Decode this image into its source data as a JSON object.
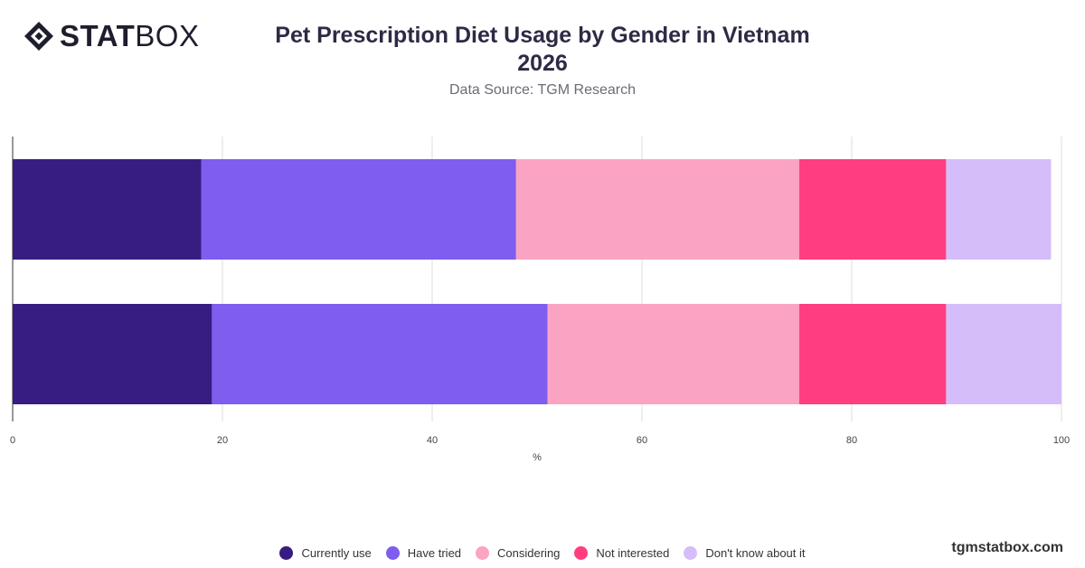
{
  "brand": {
    "logo_bold": "STAT",
    "logo_thin": "BOX",
    "website": "tgmstatbox.com"
  },
  "header": {
    "title_line1": "Pet Prescription Diet Usage by Gender in Vietnam",
    "title_line2": "2026",
    "subtitle": "Data Source: TGM Research"
  },
  "legend": [
    {
      "label": "Currently use",
      "color": "#371d82"
    },
    {
      "label": "Have tried",
      "color": "#7d5eef"
    },
    {
      "label": "Considering",
      "color": "#fba3c3"
    },
    {
      "label": "Not interested",
      "color": "#ff3d80"
    },
    {
      "label": "Don't know about it",
      "color": "#d5bdfa"
    }
  ],
  "chart_data": {
    "type": "bar",
    "orientation": "horizontal",
    "stacked": true,
    "categories": [
      "",
      ""
    ],
    "series": [
      {
        "name": "Currently use",
        "values": [
          18,
          19
        ],
        "color": "#371d82"
      },
      {
        "name": "Have tried",
        "values": [
          30,
          32
        ],
        "color": "#7d5eef"
      },
      {
        "name": "Considering",
        "values": [
          27,
          24
        ],
        "color": "#fba3c3"
      },
      {
        "name": "Not interested",
        "values": [
          14,
          14
        ],
        "color": "#ff3d80"
      },
      {
        "name": "Don't know about it",
        "values": [
          10,
          11
        ],
        "color": "#d5bdfa"
      }
    ],
    "xlabel": "%",
    "xlim": [
      0,
      100
    ],
    "xticks": [
      0,
      20,
      40,
      60,
      80,
      100
    ],
    "grid": true,
    "legend_position": "bottom"
  }
}
